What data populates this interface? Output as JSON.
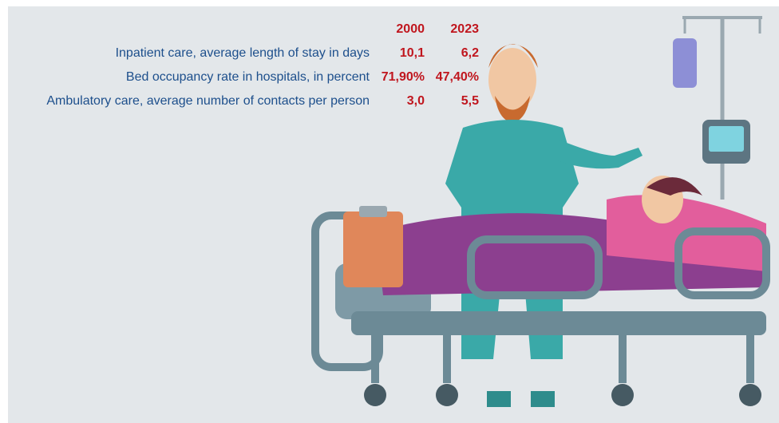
{
  "table": {
    "columns": [
      "2000",
      "2023"
    ],
    "rows": [
      [
        "Inpatient care, average length of stay in days",
        "10,1",
        "6,2"
      ],
      [
        "Bed occupancy rate in hospitals, in percent",
        "71,90%",
        "47,40%"
      ],
      [
        "Ambulatory care, average number of contacts per person",
        "3,0",
        "5,5"
      ]
    ]
  }
}
